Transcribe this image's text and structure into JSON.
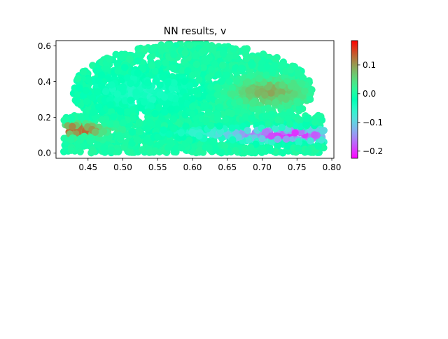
{
  "chart_data": {
    "type": "scatter",
    "title": "NN results, v",
    "xlabel": "",
    "ylabel": "",
    "xlim": [
      0.404,
      0.803
    ],
    "ylim": [
      -0.03,
      0.63
    ],
    "x_ticks": [
      0.45,
      0.5,
      0.55,
      0.6,
      0.65,
      0.7,
      0.75,
      0.8
    ],
    "x_tick_labels": [
      "0.45",
      "0.50",
      "0.55",
      "0.60",
      "0.65",
      "0.70",
      "0.75",
      "0.80"
    ],
    "y_ticks": [
      0.0,
      0.2,
      0.4,
      0.6
    ],
    "y_tick_labels": [
      "0.0",
      "0.2",
      "0.4",
      "0.6"
    ],
    "colormap": "rainbow",
    "color_range": [
      -0.225,
      0.185
    ],
    "colorbar": {
      "ticks": [
        0.1,
        0.0,
        -0.1,
        -0.2
      ],
      "tick_labels": [
        "0.1",
        "0.0",
        "−0.1",
        "−0.2"
      ]
    },
    "domain": {
      "ellipse": {
        "center": [
          0.6,
          0.35
        ],
        "semi_axes": [
          0.172,
          0.265
        ]
      },
      "rectangle": {
        "x": [
          0.415,
          0.79
        ],
        "y": [
          0.0,
          0.21
        ]
      }
    },
    "field_features": [
      {
        "description": "background",
        "value": 0.0
      },
      {
        "center": [
          0.53,
          0.34
        ],
        "spread": [
          0.06,
          0.08
        ],
        "value": -0.04
      },
      {
        "center": [
          0.71,
          0.34
        ],
        "spread": [
          0.035,
          0.05
        ],
        "value": 0.09
      },
      {
        "center": [
          0.43,
          0.13
        ],
        "spread": [
          0.03,
          0.02
        ],
        "value": 0.16
      },
      {
        "center": [
          0.745,
          0.1
        ],
        "spread": [
          0.05,
          0.025
        ],
        "value": -0.2
      },
      {
        "center": [
          0.65,
          0.11
        ],
        "spread": [
          0.06,
          0.02
        ],
        "value": -0.07
      }
    ]
  }
}
